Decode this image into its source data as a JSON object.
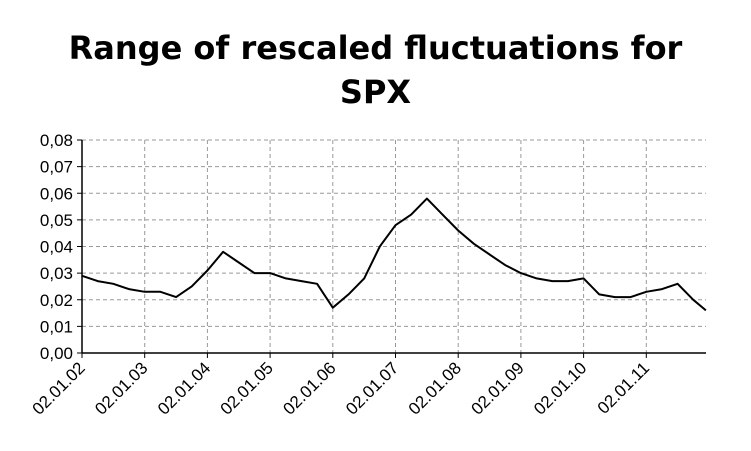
{
  "chart_data": {
    "type": "line",
    "title_line1": "Range of rescaled fluctuations for",
    "title_line2": "SPX",
    "xlabel": "",
    "ylabel": "",
    "ylim": [
      0,
      0.08
    ],
    "y_ticks": [
      "0,00",
      "0,01",
      "0,02",
      "0,03",
      "0,04",
      "0,05",
      "0,06",
      "0,07",
      "0,08"
    ],
    "x_ticks": [
      "02.01.02",
      "02.01.03",
      "02.01.04",
      "02.01.05",
      "02.01.06",
      "02.01.07",
      "02.01.08",
      "02.01.09",
      "02.01.10",
      "02.01.11"
    ],
    "grid": true,
    "legend": "none",
    "line_color": "#000000",
    "series": [
      {
        "x": [
          2002.0,
          2002.25,
          2002.5,
          2002.75,
          2003.0,
          2003.25,
          2003.5,
          2003.75,
          2004.0,
          2004.25,
          2004.5,
          2004.75,
          2005.0,
          2005.25,
          2005.5,
          2005.75,
          2006.0,
          2006.25,
          2006.5,
          2006.75,
          2007.0,
          2007.25,
          2007.5,
          2007.75,
          2008.0,
          2008.25,
          2008.5,
          2008.75,
          2009.0,
          2009.25,
          2009.5,
          2009.75,
          2010.0,
          2010.25,
          2010.5,
          2010.75,
          2011.0,
          2011.25,
          2011.5,
          2011.75,
          2011.95
        ],
        "values": [
          0.029,
          0.027,
          0.026,
          0.024,
          0.023,
          0.023,
          0.021,
          0.025,
          0.031,
          0.038,
          0.034,
          0.03,
          0.03,
          0.028,
          0.027,
          0.026,
          0.017,
          0.022,
          0.028,
          0.04,
          0.048,
          0.052,
          0.058,
          0.052,
          0.046,
          0.041,
          0.037,
          0.033,
          0.03,
          0.028,
          0.027,
          0.027,
          0.028,
          0.022,
          0.021,
          0.021,
          0.023,
          0.024,
          0.026,
          0.02,
          0.016
        ]
      }
    ]
  }
}
